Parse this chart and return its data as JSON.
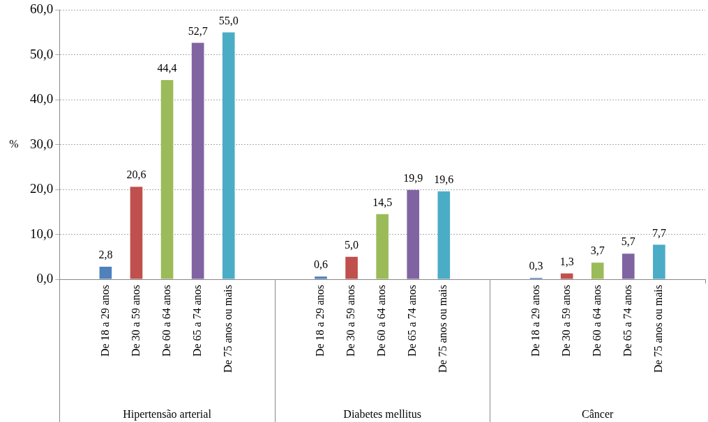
{
  "chart_data": {
    "type": "bar",
    "ylabel": "%",
    "categories": [
      null,
      "De 18 a 29 anos",
      "De 30 a 59 anos",
      "De 60 a 64 anos",
      "De 65 a 74 anos",
      "De 75 anos ou mais",
      null,
      null,
      "De 18 a 29 anos",
      "De 30 a 59 anos",
      "De 60 a 64 anos",
      "De 65 a 74 anos",
      "De 75 anos ou mais",
      null,
      null,
      "De 18 a 29 anos",
      "De 30 a 59 anos",
      "De 60 a 64 anos",
      "De 65 a 74 anos",
      "De 75 anos ou mais",
      null
    ],
    "values": [
      null,
      2.8,
      20.6,
      44.4,
      52.7,
      55.0,
      null,
      null,
      0.6,
      5.0,
      14.5,
      19.9,
      19.6,
      null,
      null,
      0.3,
      1.3,
      3.7,
      5.7,
      7.7,
      null
    ],
    "value_labels": [
      null,
      "2,8",
      "20,6",
      "44,4",
      "52,7",
      "55,0",
      null,
      null,
      "0,6",
      "5,0",
      "14,5",
      "19,9",
      "19,6",
      null,
      null,
      "0,3",
      "1,3",
      "3,7",
      "5,7",
      "7,7",
      null
    ],
    "colors": [
      null,
      "#4f81bd",
      "#c0504d",
      "#9bbb59",
      "#8064a2",
      "#4bacc6",
      null,
      null,
      "#4f81bd",
      "#c0504d",
      "#9bbb59",
      "#8064a2",
      "#4bacc6",
      null,
      null,
      "#4f81bd",
      "#c0504d",
      "#9bbb59",
      "#8064a2",
      "#4bacc6",
      null
    ],
    "annotations": [
      "Hipertensão arterial",
      "Diabetes mellitus",
      "Câncer"
    ],
    "ylim": [
      0,
      60
    ],
    "yticks": [
      {
        "value": 0,
        "label": "0,0"
      },
      {
        "value": 10,
        "label": "10,0"
      },
      {
        "value": 20,
        "label": "20,0"
      },
      {
        "value": 30,
        "label": "30,0"
      },
      {
        "value": 40,
        "label": "40,0"
      },
      {
        "value": 50,
        "label": "50,0"
      },
      {
        "value": 60,
        "label": "60,0"
      }
    ],
    "grid": "y"
  }
}
